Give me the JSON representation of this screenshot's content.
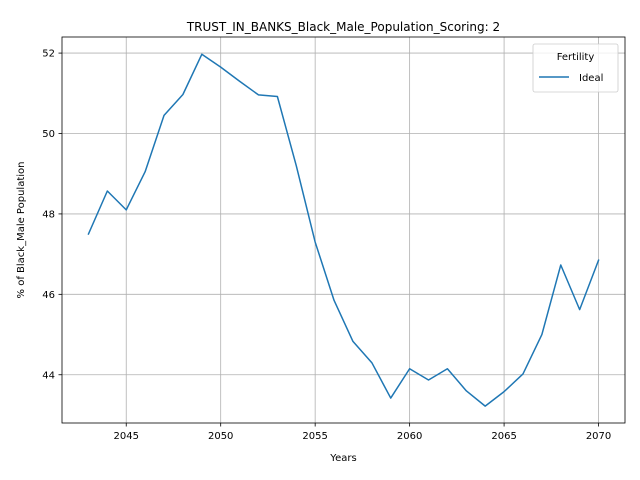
{
  "chart_data": {
    "type": "line",
    "title": "TRUST_IN_BANKS_Black_Male_Population_Scoring: 2",
    "xlabel": "Years",
    "ylabel": "% of Black_Male Population",
    "xlim": [
      2041.6,
      2071.4
    ],
    "ylim": [
      42.8,
      52.4
    ],
    "xticks": [
      2045,
      2050,
      2055,
      2060,
      2065,
      2070
    ],
    "yticks": [
      44,
      46,
      48,
      50,
      52
    ],
    "grid": true,
    "legend": {
      "title": "Fertility",
      "placement": "top-right"
    },
    "series": [
      {
        "name": "Ideal",
        "color": "#1f77b4",
        "x": [
          2043,
          2044,
          2045,
          2046,
          2047,
          2048,
          2049,
          2050,
          2051,
          2052,
          2053,
          2054,
          2055,
          2056,
          2057,
          2058,
          2059,
          2060,
          2061,
          2062,
          2063,
          2064,
          2065,
          2066,
          2067,
          2068,
          2069,
          2070
        ],
        "y": [
          47.5,
          48.57,
          48.1,
          49.05,
          50.45,
          50.97,
          51.97,
          51.65,
          51.3,
          50.96,
          50.92,
          49.2,
          47.3,
          45.85,
          44.83,
          44.3,
          43.42,
          44.15,
          43.87,
          44.15,
          43.6,
          43.22,
          43.58,
          44.02,
          45.0,
          46.73,
          45.62,
          46.85
        ]
      }
    ]
  }
}
